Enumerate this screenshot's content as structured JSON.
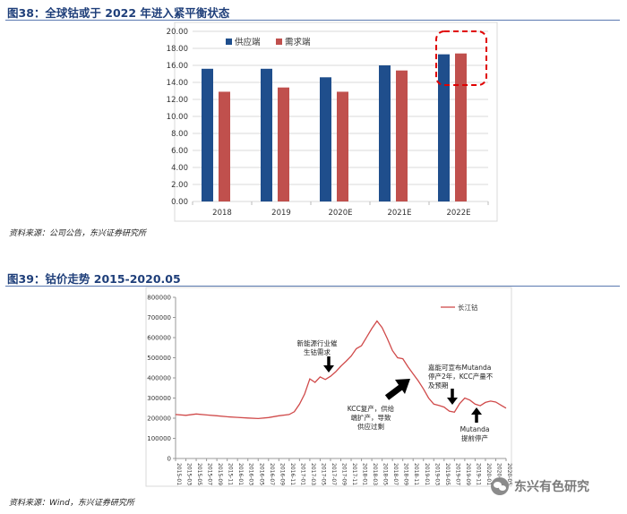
{
  "fig38": {
    "title": "图38：全球钴或于 2022 年进入紧平衡状态",
    "source": "资料来源：公司公告，东兴证券研究所"
  },
  "fig39": {
    "title": "图39：钴价走势 2015-2020.05",
    "source": "资料来源：Wind，东兴证券研究所"
  },
  "watermark": {
    "text": "东兴有色研究",
    "icon": "wechat-icon"
  },
  "colors": {
    "supply": "#1f4e8c",
    "demand": "#c0504d",
    "price_line": "#d04a4a",
    "highlight": "#e00000",
    "title": "#1f3f7a"
  },
  "chart_data": [
    {
      "type": "bar",
      "categories": [
        "2018",
        "2019",
        "2020E",
        "2021E",
        "2022E"
      ],
      "series": [
        {
          "name": "供应端",
          "values": [
            15.6,
            15.6,
            14.6,
            16.0,
            17.3
          ]
        },
        {
          "name": "需求端",
          "values": [
            12.9,
            13.4,
            12.9,
            15.4,
            17.4
          ]
        }
      ],
      "ylim": [
        0,
        20
      ],
      "yticks": [
        "0.00",
        "2.00",
        "4.00",
        "6.00",
        "8.00",
        "10.00",
        "12.00",
        "14.00",
        "16.00",
        "18.00",
        "20.00"
      ],
      "legend": "top-left",
      "grid": true,
      "highlight_category": "2022E"
    },
    {
      "type": "line",
      "series": [
        {
          "name": "长江钴"
        }
      ],
      "ylim": [
        0,
        800000
      ],
      "yticks": [
        "0",
        "100000",
        "200000",
        "300000",
        "400000",
        "500000",
        "600000",
        "700000",
        "800000"
      ],
      "xticks": [
        "2015-01",
        "2015-03",
        "2015-05",
        "2015-07",
        "2015-09",
        "2015-11",
        "2016-01",
        "2016-03",
        "2016-05",
        "2016-07",
        "2016-09",
        "2016-11",
        "2017-01",
        "2017-03",
        "2017-05",
        "2017-07",
        "2017-09",
        "2017-11",
        "2018-01",
        "2018-03",
        "2018-05",
        "2018-07",
        "2018-09",
        "2018-11",
        "2019-01",
        "2019-03",
        "2019-05",
        "2019-07",
        "2019-09",
        "2019-11",
        "2020-01",
        "2020-03",
        "2020-05"
      ],
      "x": [
        "2015-01",
        "2015-03",
        "2015-05",
        "2015-07",
        "2015-09",
        "2015-11",
        "2016-01",
        "2016-03",
        "2016-05",
        "2016-07",
        "2016-09",
        "2016-11",
        "2016-12",
        "2017-01",
        "2017-02",
        "2017-03",
        "2017-04",
        "2017-05",
        "2017-06",
        "2017-07",
        "2017-08",
        "2017-09",
        "2017-10",
        "2017-11",
        "2017-12",
        "2018-01",
        "2018-02",
        "2018-03",
        "2018-04",
        "2018-05",
        "2018-06",
        "2018-07",
        "2018-08",
        "2018-09",
        "2018-10",
        "2018-11",
        "2018-12",
        "2019-01",
        "2019-02",
        "2019-03",
        "2019-04",
        "2019-05",
        "2019-06",
        "2019-07",
        "2019-08",
        "2019-09",
        "2019-10",
        "2019-11",
        "2019-12",
        "2020-01",
        "2020-02",
        "2020-03",
        "2020-04",
        "2020-05"
      ],
      "values": [
        218000,
        214000,
        221000,
        216000,
        212000,
        207000,
        204000,
        201000,
        198000,
        203000,
        212000,
        218000,
        232000,
        270000,
        320000,
        395000,
        378000,
        405000,
        392000,
        408000,
        430000,
        458000,
        482000,
        508000,
        545000,
        560000,
        602000,
        645000,
        682000,
        650000,
        595000,
        535000,
        500000,
        495000,
        455000,
        420000,
        385000,
        345000,
        300000,
        270000,
        263000,
        255000,
        235000,
        230000,
        272000,
        300000,
        290000,
        270000,
        262000,
        278000,
        285000,
        280000,
        265000,
        250000
      ],
      "legend": "top-right",
      "grid": false,
      "annotations": [
        {
          "text": [
            "新能源行业催",
            "生钴需求"
          ],
          "arrow": "down"
        },
        {
          "text": [
            "KCC复产，供给",
            "端扩产，导致",
            "供应过剩"
          ],
          "arrow": "up-right"
        },
        {
          "text": [
            "嘉能可宣布Mutanda",
            "停产2年，KCC产量不",
            "及预期"
          ],
          "arrow": "down"
        },
        {
          "text": [
            "Mutanda",
            "提前停产"
          ],
          "arrow": "up"
        }
      ]
    }
  ]
}
